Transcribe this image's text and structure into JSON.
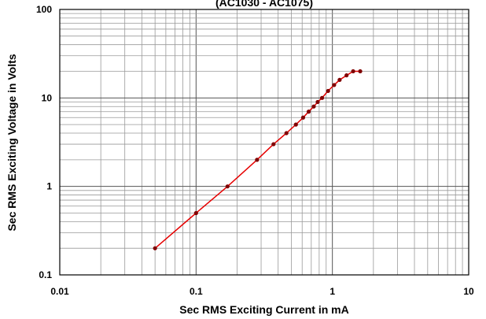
{
  "chart_data": {
    "type": "line",
    "title": "(AC1030 - AC1075)",
    "xlabel": "Sec RMS Exciting Current in mA",
    "ylabel": "Sec RMS Exciting Voltage in Volts",
    "x_scale": "log",
    "y_scale": "log",
    "xlim": [
      0.01,
      10
    ],
    "ylim": [
      0.1,
      100
    ],
    "x_tick_labels": [
      "0.01",
      "0.1",
      "1",
      "10"
    ],
    "y_tick_labels": [
      "0.1",
      "1",
      "10",
      "100"
    ],
    "grid": true,
    "legend": "none",
    "series": [
      {
        "color": "#e60000",
        "marker_color": "#800000",
        "x": [
          0.05,
          0.1,
          0.17,
          0.28,
          0.37,
          0.46,
          0.54,
          0.61,
          0.67,
          0.73,
          0.78,
          0.84,
          0.93,
          1.03,
          1.13,
          1.27,
          1.42,
          1.6
        ],
        "y": [
          0.2,
          0.5,
          1,
          2,
          3,
          4,
          5,
          6,
          7,
          8,
          9,
          10,
          12,
          14,
          16,
          18,
          20,
          20
        ]
      }
    ]
  }
}
